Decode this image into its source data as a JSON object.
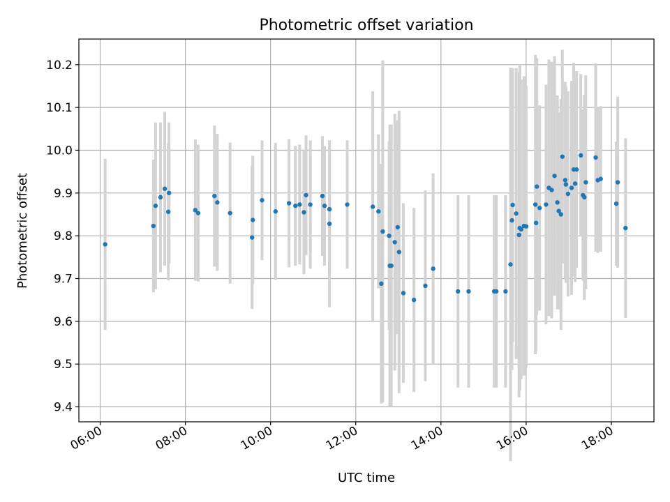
{
  "chart_data": {
    "type": "scatter",
    "title": "Photometric offset variation",
    "xlabel": "UTC time",
    "ylabel": "Photometric offset",
    "x_unit": "hour of day (UTC)",
    "xlim": [
      "05:30",
      "19:00"
    ],
    "ylim": [
      9.365,
      10.26
    ],
    "x_ticks": [
      "06:00",
      "08:00",
      "10:00",
      "12:00",
      "14:00",
      "16:00",
      "18:00"
    ],
    "y_ticks": [
      "9.4",
      "9.5",
      "9.6",
      "9.7",
      "9.8",
      "9.9",
      "10.0",
      "10.1",
      "10.2"
    ],
    "grid": true,
    "legend": "none",
    "colors": {
      "point": "#1f77b4",
      "errorbar": "#d3d3d3",
      "grid": "#b0b0b0"
    },
    "series": [
      {
        "x": [
          "06:07",
          "07:15",
          "07:18",
          "07:25",
          "07:31",
          "07:36",
          "07:37",
          "08:14",
          "08:18",
          "08:41",
          "08:45",
          "09:03",
          "09:34",
          "09:35",
          "09:48",
          "10:07",
          "10:26",
          "10:35",
          "10:41",
          "10:47",
          "10:50",
          "10:56",
          "11:13",
          "11:16",
          "11:23",
          "11:23",
          "11:48",
          "12:24",
          "12:32",
          "12:36",
          "12:38",
          "12:47",
          "12:48",
          "12:50",
          "12:55",
          "12:59",
          "13:01",
          "13:07",
          "13:22",
          "13:38",
          "13:49",
          "14:24",
          "14:39",
          "15:15",
          "15:18",
          "15:31",
          "15:38",
          "15:40",
          "15:41",
          "15:46",
          "15:50",
          "15:51",
          "15:53",
          "15:57",
          "16:00",
          "16:13",
          "16:14",
          "16:15",
          "16:19",
          "16:28",
          "16:32",
          "16:36",
          "16:40",
          "16:44",
          "16:46",
          "16:49",
          "16:51",
          "16:55",
          "16:56",
          "16:59",
          "17:04",
          "17:07",
          "17:09",
          "17:11",
          "17:17",
          "17:20",
          "17:22",
          "17:24",
          "17:38",
          "17:41",
          "17:45",
          "18:07",
          "18:09",
          "18:20"
        ],
        "y": [
          9.78,
          9.823,
          9.87,
          9.89,
          9.91,
          9.856,
          9.9,
          9.86,
          9.853,
          9.893,
          9.878,
          9.853,
          9.796,
          9.837,
          9.883,
          9.857,
          9.876,
          9.87,
          9.873,
          9.855,
          9.895,
          9.873,
          9.893,
          9.87,
          9.862,
          9.828,
          9.873,
          9.868,
          9.857,
          9.688,
          9.81,
          9.8,
          9.73,
          9.73,
          9.785,
          9.82,
          9.762,
          9.666,
          9.65,
          9.683,
          9.723,
          9.67,
          9.67,
          9.67,
          9.67,
          9.67,
          9.733,
          9.836,
          9.872,
          9.852,
          9.802,
          9.818,
          9.815,
          9.823,
          9.822,
          9.873,
          9.83,
          9.915,
          9.865,
          9.873,
          9.912,
          9.907,
          9.94,
          9.878,
          9.858,
          9.85,
          9.985,
          9.93,
          9.92,
          9.898,
          9.912,
          9.955,
          9.922,
          9.955,
          9.988,
          9.895,
          9.89,
          9.925,
          9.983,
          9.93,
          9.933,
          9.875,
          9.925,
          9.818
        ],
        "yerr": [
          0.2,
          0.155,
          0.195,
          0.175,
          0.18,
          0.16,
          0.165,
          0.165,
          0.16,
          0.165,
          0.16,
          0.165,
          0.167,
          0.15,
          0.14,
          0.16,
          0.15,
          0.14,
          0.14,
          0.145,
          0.14,
          0.15,
          0.14,
          0.14,
          0.15,
          0.195,
          0.15,
          0.27,
          0.18,
          0.28,
          0.4,
          0.22,
          0.33,
          0.33,
          0.3,
          0.25,
          0.33,
          0.21,
          0.215,
          0.223,
          0.223,
          0.225,
          0.225,
          0.225,
          0.225,
          0.225,
          0.46,
          0.35,
          0.32,
          0.34,
          0.38,
          0.38,
          0.35,
          0.35,
          0.33,
          0.35,
          0.3,
          0.3,
          0.24,
          0.28,
          0.3,
          0.3,
          0.28,
          0.25,
          0.23,
          0.27,
          0.25,
          0.23,
          0.23,
          0.24,
          0.25,
          0.25,
          0.23,
          0.23,
          0.19,
          0.2,
          0.24,
          0.25,
          0.22,
          0.17,
          0.17,
          0.145,
          0.2,
          0.21
        ]
      }
    ]
  }
}
